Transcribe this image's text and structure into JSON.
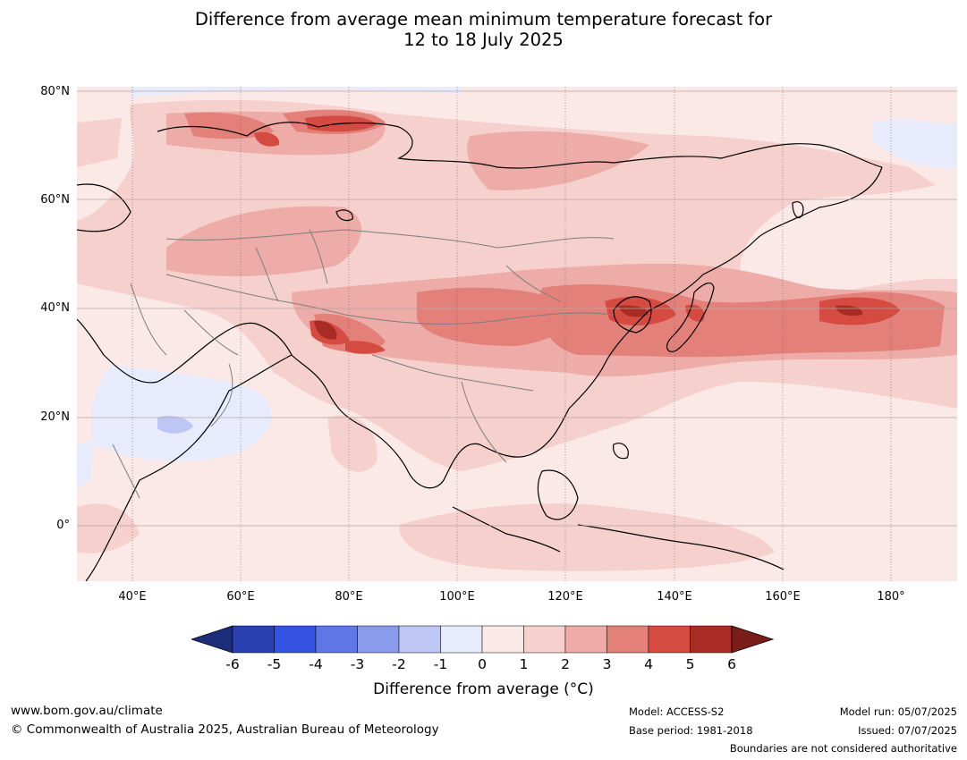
{
  "title_line1": "Difference from average mean minimum temperature forecast for",
  "title_line2": "12 to 18 July 2025",
  "lat_labels": [
    "80°N",
    "60°N",
    "40°N",
    "20°N",
    "0°"
  ],
  "lon_labels": [
    "40°E",
    "60°E",
    "80°E",
    "100°E",
    "120°E",
    "140°E",
    "160°E",
    "180°"
  ],
  "colorbar": {
    "ticks": [
      "-6",
      "-5",
      "-4",
      "-3",
      "-2",
      "-1",
      "0",
      "1",
      "2",
      "3",
      "4",
      "5",
      "6"
    ],
    "colors": [
      "#1c2d7c",
      "#2b40b0",
      "#3553e2",
      "#5f76e6",
      "#8a9bec",
      "#bec6f5",
      "#e8ebfb",
      "#fbe9e8",
      "#f5d0cd",
      "#edaca7",
      "#e4807a",
      "#d54a41",
      "#a92b25",
      "#7a1e1b"
    ],
    "title": "Difference from average (°C)"
  },
  "footer": {
    "website": "www.bom.gov.au/climate",
    "copyright": "© Commonwealth of Australia 2025, Australian Bureau of Meteorology",
    "model": "Model: ACCESS-S2",
    "base_period": "Base period: 1981-2018",
    "model_run": "Model run: 05/07/2025",
    "issued": "Issued: 07/07/2025",
    "disclaimer": "Boundaries are not considered authoritative"
  }
}
